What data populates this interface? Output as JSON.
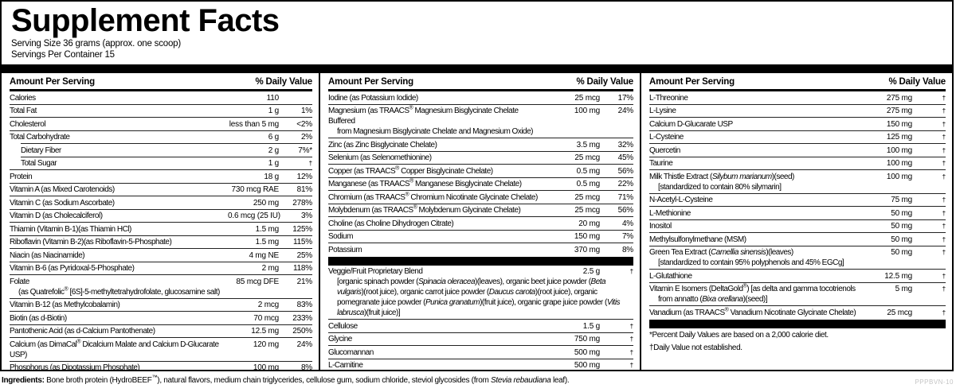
{
  "header": {
    "title": "Supplement Facts",
    "serving_size": "Serving Size 36 grams (approx. one scoop)",
    "servings_per_container": "Servings Per Container 15"
  },
  "table": {
    "header": {
      "amount": "Amount Per Serving",
      "dv": "% Daily Value"
    },
    "columns": [
      {
        "rows": [
          {
            "name": "Calories",
            "amount": "110",
            "dv": ""
          },
          {
            "name": "Total Fat",
            "amount": "1 g",
            "dv": "1%"
          },
          {
            "name": "Cholesterol",
            "amount": "less than 5 mg",
            "dv": "<2%"
          },
          {
            "name": "Total Carbohydrate",
            "amount": "6 g",
            "dv": "2%"
          },
          {
            "name": "Dietary Fiber",
            "amount": "2 g",
            "dv": "7%*",
            "indent": true
          },
          {
            "name": "Total Sugar",
            "amount": "1 g",
            "dv": "†",
            "indent": true
          },
          {
            "name": "Protein",
            "amount": "18 g",
            "dv": "12%"
          },
          {
            "name": "Vitamin A (as Mixed Carotenoids)",
            "amount": "730 mcg RAE",
            "dv": "81%"
          },
          {
            "name": "Vitamin C (as Sodium Ascorbate)",
            "amount": "250 mg",
            "dv": "278%"
          },
          {
            "name": "Vitamin D (as Cholecalciferol)",
            "amount": "0.6 mcg (25 IU)",
            "dv": "3%"
          },
          {
            "name": "Thiamin (Vitamin B-1)(as Thiamin HCl)",
            "amount": "1.5 mg",
            "dv": "125%"
          },
          {
            "name": "Riboflavin (Vitamin B-2)(as Riboflavin-5-Phosphate)",
            "amount": "1.5 mg",
            "dv": "115%"
          },
          {
            "name": "Niacin (as Niacinamide)",
            "amount": "4 mg NE",
            "dv": "25%"
          },
          {
            "name": "Vitamin B-6 (as Pyridoxal-5-Phosphate)",
            "amount": "2 mg",
            "dv": "118%"
          },
          {
            "name": "Folate",
            "amount": "85 mcg DFE",
            "dv": "21%",
            "sub": [
              [
                "(as Quatrefolic",
                {
                  "t": "®",
                  "s": true
                },
                " [6S]-5-methyltetrahydrofolate, glucosamine salt)"
              ]
            ]
          },
          {
            "name": "Vitamin B-12 (as Methylcobalamin)",
            "amount": "2 mcg",
            "dv": "83%"
          },
          {
            "name": "Biotin (as d-Biotin)",
            "amount": "70 mcg",
            "dv": "233%"
          },
          {
            "name": "Pantothenic Acid (as d-Calcium Pantothenate)",
            "amount": "12.5 mg",
            "dv": "250%"
          },
          {
            "name": [
              "Calcium (as DimaCal",
              {
                "t": "®",
                "s": true
              },
              " Dicalcium Malate and Calcium D-Glucarate USP)"
            ],
            "amount": "120 mg",
            "dv": "24%"
          },
          {
            "name": "Phosphorus (as Dipotassium Phosphate)",
            "amount": "100 mg",
            "dv": "8%"
          }
        ]
      },
      {
        "rows": [
          {
            "name": "Iodine (as Potassium Iodide)",
            "amount": "25 mcg",
            "dv": "17%"
          },
          {
            "name": [
              "Magnesium (as TRAACS",
              {
                "t": "®",
                "s": true
              },
              " Magnesium Bisglycinate Chelate Buffered"
            ],
            "amount": "100 mg",
            "dv": "24%",
            "sub": [
              [
                "from Magnesium Bisglycinate Chelate and Magnesium Oxide)"
              ]
            ]
          },
          {
            "name": "Zinc (as Zinc Bisglycinate Chelate)",
            "amount": "3.5 mg",
            "dv": "32%"
          },
          {
            "name": "Selenium (as Selenomethionine)",
            "amount": "25 mcg",
            "dv": "45%"
          },
          {
            "name": [
              "Copper (as TRAACS",
              {
                "t": "®",
                "s": true
              },
              " Copper Bisglycinate Chelate)"
            ],
            "amount": "0.5 mg",
            "dv": "56%"
          },
          {
            "name": [
              "Manganese (as TRAACS",
              {
                "t": "®",
                "s": true
              },
              " Manganese Bisglycinate Chelate)"
            ],
            "amount": "0.5 mg",
            "dv": "22%"
          },
          {
            "name": [
              "Chromium (as TRAACS",
              {
                "t": "®",
                "s": true
              },
              " Chromium Nicotinate Glycinate Chelate)"
            ],
            "amount": "25 mcg",
            "dv": "71%"
          },
          {
            "name": [
              "Molybdenum (as TRAACS",
              {
                "t": "®",
                "s": true
              },
              " Molybdenum Glycinate Chelate)"
            ],
            "amount": "25 mcg",
            "dv": "56%"
          },
          {
            "name": "Choline (as Choline Dihydrogen Citrate)",
            "amount": "20 mg",
            "dv": "4%"
          },
          {
            "name": "Sodium",
            "amount": "150 mg",
            "dv": "7%"
          },
          {
            "name": "Potassium",
            "amount": "370 mg",
            "dv": "8%"
          },
          {
            "bar": true
          },
          {
            "name": "Veggie/Fruit Proprietary Blend",
            "amount": "2.5 g",
            "dv": "†",
            "sub": [
              [
                "[organic spinach powder (",
                {
                  "t": "Spinacia oleracea",
                  "i": true
                },
                ")(leaves), organic beet juice powder (",
                {
                  "t": "Beta vulgaris",
                  "i": true
                },
                ")(root juice), organic carrot juice powder (",
                {
                  "t": "Daucus carota",
                  "i": true
                },
                ")(root juice), organic pomegranate juice powder (",
                {
                  "t": "Punica granatum",
                  "i": true
                },
                ")(fruit juice), organic grape juice powder (",
                {
                  "t": "Vitis labrusca",
                  "i": true
                },
                ")(fruit juice)]"
              ]
            ]
          },
          {
            "name": "Cellulose",
            "amount": "1.5 g",
            "dv": "†"
          },
          {
            "name": "Glycine",
            "amount": "750 mg",
            "dv": "†"
          },
          {
            "name": "Glucomannan",
            "amount": "500 mg",
            "dv": "†"
          },
          {
            "name": "L-Carnitine",
            "amount": "500 mg",
            "dv": "†"
          }
        ]
      },
      {
        "rows": [
          {
            "name": "L-Threonine",
            "amount": "275 mg",
            "dv": "†"
          },
          {
            "name": "L-Lysine",
            "amount": "275 mg",
            "dv": "†"
          },
          {
            "name": "Calcium D-Glucarate USP",
            "amount": "150 mg",
            "dv": "†"
          },
          {
            "name": "L-Cysteine",
            "amount": "125 mg",
            "dv": "†"
          },
          {
            "name": "Quercetin",
            "amount": "100 mg",
            "dv": "†"
          },
          {
            "name": "Taurine",
            "amount": "100 mg",
            "dv": "†"
          },
          {
            "name": [
              "Milk Thistle Extract (",
              {
                "t": "Silybum marianum",
                "i": true
              },
              ")(seed)"
            ],
            "amount": "100 mg",
            "dv": "†",
            "sub": [
              [
                "[standardized to contain 80% silymarin]"
              ]
            ]
          },
          {
            "name": "N-Acetyl-L-Cysteine",
            "amount": "75 mg",
            "dv": "†"
          },
          {
            "name": "L-Methionine",
            "amount": "50 mg",
            "dv": "†"
          },
          {
            "name": "Inositol",
            "amount": "50 mg",
            "dv": "†"
          },
          {
            "name": "Methylsulfonylmethane (MSM)",
            "amount": "50 mg",
            "dv": "†"
          },
          {
            "name": [
              "Green Tea Extract (",
              {
                "t": "Camellia sinensis",
                "i": true
              },
              ")(leaves)"
            ],
            "amount": "50 mg",
            "dv": "†",
            "sub": [
              [
                "[standardized to contain 95% polyphenols and 45% EGCg]"
              ]
            ]
          },
          {
            "name": "L-Glutathione",
            "amount": "12.5 mg",
            "dv": "†"
          },
          {
            "name": [
              "Vitamin E Isomers (DeltaGold",
              {
                "t": "®",
                "s": true
              },
              ") [as delta and gamma tocotrienols"
            ],
            "amount": "5 mg",
            "dv": "†",
            "sub": [
              [
                "from annatto (",
                {
                  "t": "Bixa orellana",
                  "i": true
                },
                ")(seed)]"
              ]
            ]
          },
          {
            "name": [
              "Vanadium (as TRAACS",
              {
                "t": "®",
                "s": true
              },
              " Vanadium Nicotinate Glycinate Chelate)"
            ],
            "amount": "25 mcg",
            "dv": "†"
          },
          {
            "bar": true
          },
          {
            "note": "*Percent Daily Values are based on a 2,000 calorie diet."
          },
          {
            "note": "†Daily Value not established."
          }
        ]
      }
    ]
  },
  "ingredients": [
    {
      "t": "Ingredients: ",
      "b": true
    },
    "Bone broth protein (HydroBEEF",
    {
      "t": "™",
      "s": true
    },
    "), natural flavors, medium chain triglycerides, cellulose gum, sodium chloride, steviol glycosides (from ",
    {
      "t": "Stevia rebaudiana",
      "i": true
    },
    " leaf)."
  ],
  "code": "PPPBVN-10"
}
